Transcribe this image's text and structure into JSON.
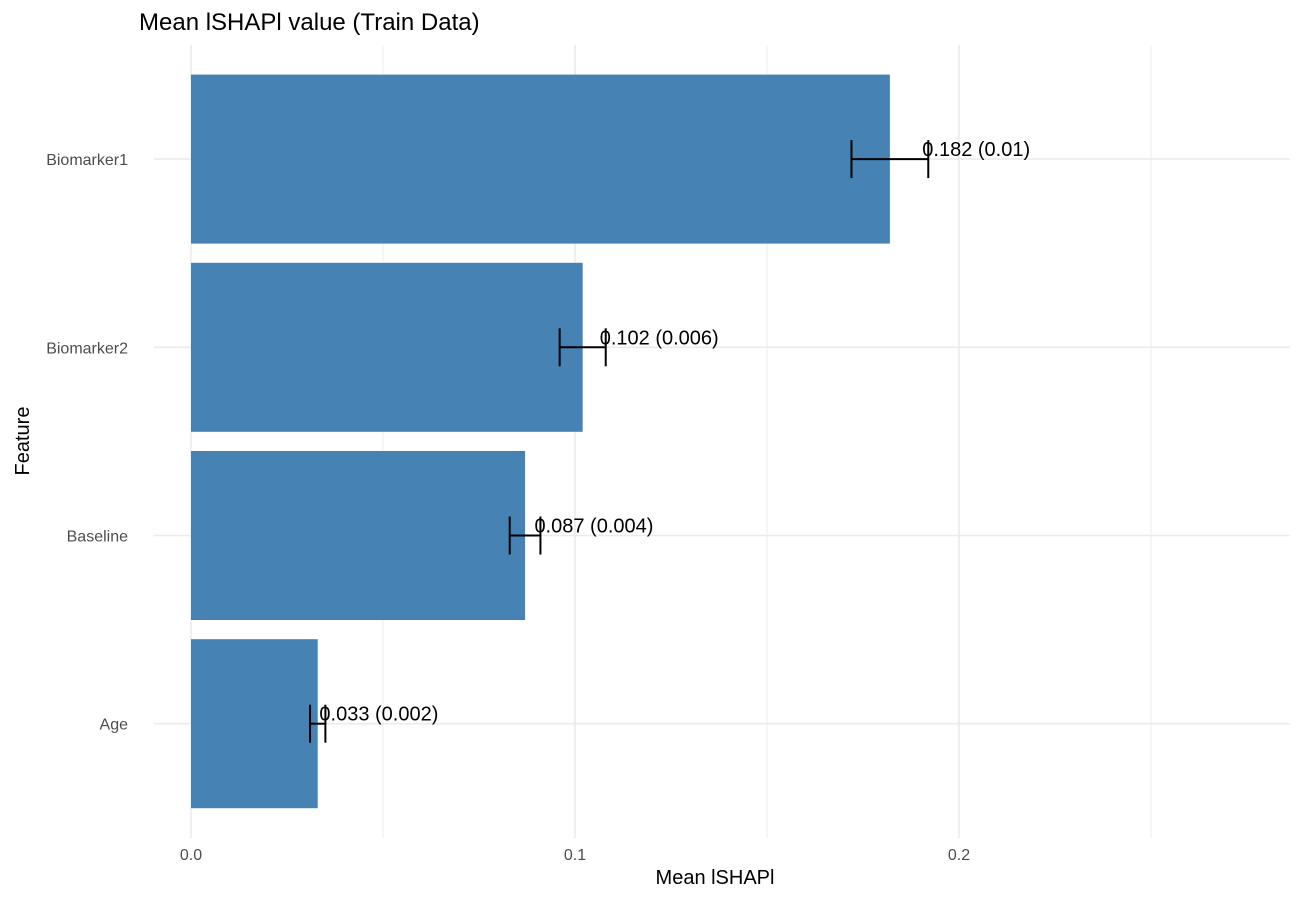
{
  "chart_data": {
    "type": "bar",
    "orientation": "horizontal",
    "title": "Mean lSHAPl value (Train Data)",
    "xlabel": "Mean lSHAPl",
    "ylabel": "Feature",
    "categories": [
      "Biomarker1",
      "Biomarker2",
      "Baseline",
      "Age"
    ],
    "values": [
      0.182,
      0.102,
      0.087,
      0.033
    ],
    "errors": [
      0.01,
      0.006,
      0.004,
      0.002
    ],
    "labels": [
      "0.182 (0.01)",
      "0.102 (0.006)",
      "0.087 (0.004)",
      "0.033 (0.002)"
    ],
    "xlim": [
      0,
      0.286
    ],
    "xticks": [
      0.0,
      0.1,
      0.2
    ],
    "xtick_labels": [
      "0.0",
      "0.1",
      "0.2"
    ],
    "grid": true,
    "legend": "none",
    "colors": {
      "bar": "#4682b4",
      "errorbar": "#000000",
      "grid": "#ebebeb",
      "tick_text": "#4d4d4d"
    }
  }
}
